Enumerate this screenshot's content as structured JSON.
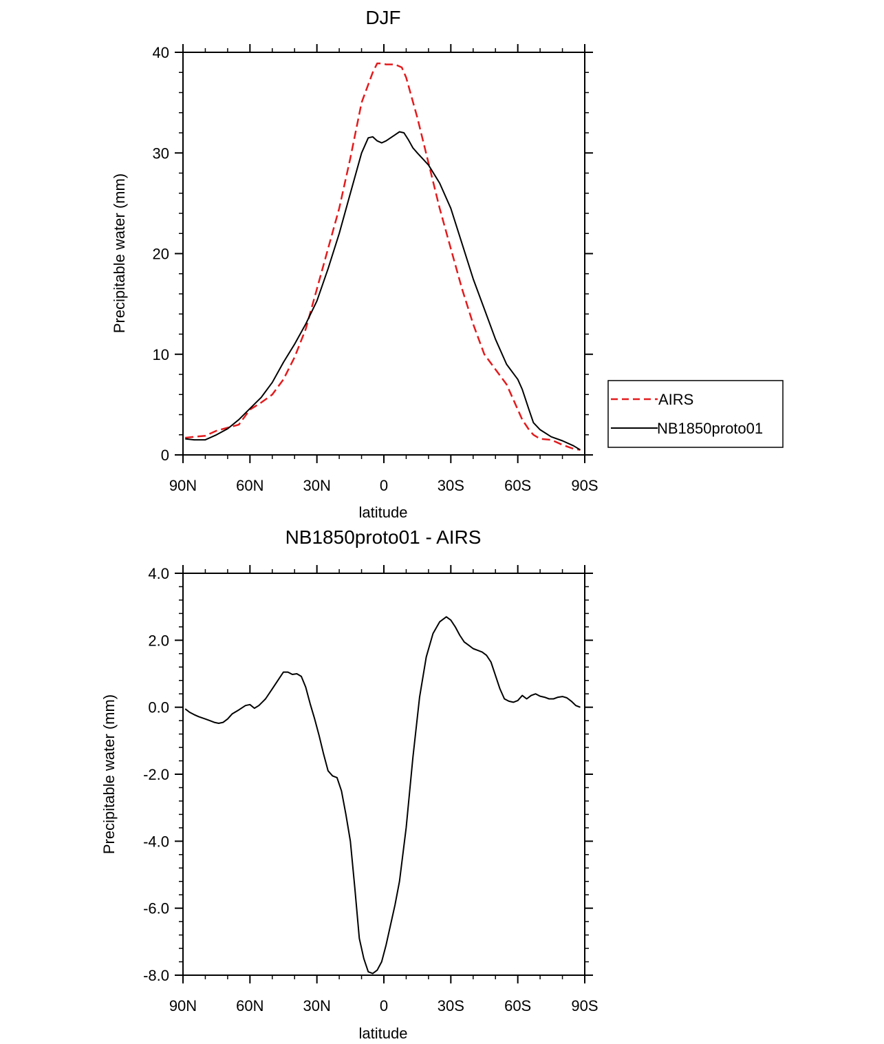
{
  "colors": {
    "airs": "#e31a1c",
    "model": "#000000",
    "axis": "#000000"
  },
  "chart_data": [
    {
      "type": "line",
      "title": "DJF",
      "xlabel": "latitude",
      "ylabel": "Precipitable water (mm)",
      "xlim": [
        90,
        -90
      ],
      "ylim": [
        0,
        40
      ],
      "xticks": [
        90,
        60,
        30,
        0,
        -30,
        -60,
        -90
      ],
      "xtick_labels": [
        "90N",
        "60N",
        "30N",
        "0",
        "30S",
        "60S",
        "90S"
      ],
      "yticks": [
        0,
        10,
        20,
        30,
        40
      ],
      "ytick_labels": [
        "0",
        "10",
        "20",
        "30",
        "40"
      ],
      "legend_position": "right",
      "series": [
        {
          "name": "AIRS",
          "style": "dashed",
          "color": "#e31a1c",
          "x": [
            89,
            85,
            80,
            75,
            70,
            65,
            60,
            55,
            50,
            45,
            40,
            35,
            30,
            25,
            20,
            15,
            10,
            5,
            3,
            1,
            -1,
            -3,
            -5,
            -8,
            -10,
            -15,
            -20,
            -25,
            -30,
            -35,
            -40,
            -45,
            -50,
            -55,
            -60,
            -62,
            -65,
            -67,
            -70,
            -75,
            -80,
            -85,
            -88
          ],
          "y": [
            1.7,
            1.8,
            1.9,
            2.4,
            2.7,
            3.0,
            4.5,
            5.2,
            6.0,
            7.5,
            9.7,
            12.5,
            16.5,
            20.5,
            24.5,
            29.5,
            35.0,
            38.0,
            38.9,
            38.9,
            38.8,
            38.8,
            38.8,
            38.5,
            37.5,
            33.5,
            29.0,
            24.5,
            20.5,
            16.5,
            13.0,
            10.0,
            8.5,
            7.0,
            4.5,
            3.5,
            2.5,
            2.0,
            1.6,
            1.5,
            1.0,
            0.6,
            0.5
          ]
        },
        {
          "name": "NB1850proto01",
          "style": "solid",
          "color": "#000000",
          "x": [
            89,
            85,
            80,
            75,
            70,
            65,
            60,
            55,
            50,
            45,
            40,
            35,
            30,
            25,
            20,
            15,
            10,
            7,
            5,
            3,
            1,
            -1,
            -3,
            -5,
            -7,
            -9,
            -11,
            -13,
            -15,
            -20,
            -25,
            -30,
            -35,
            -40,
            -45,
            -50,
            -55,
            -60,
            -62,
            -65,
            -67,
            -70,
            -75,
            -80,
            -85,
            -88
          ],
          "y": [
            1.6,
            1.5,
            1.5,
            2.0,
            2.6,
            3.5,
            4.6,
            5.7,
            7.2,
            9.2,
            11.0,
            13.0,
            15.3,
            18.5,
            22.0,
            26.0,
            30.0,
            31.5,
            31.6,
            31.2,
            31.0,
            31.2,
            31.5,
            31.8,
            32.1,
            32.0,
            31.3,
            30.5,
            30.0,
            28.8,
            27.0,
            24.5,
            21.0,
            17.5,
            14.5,
            11.5,
            9.0,
            7.5,
            6.5,
            4.5,
            3.2,
            2.5,
            1.8,
            1.4,
            0.9,
            0.5
          ]
        }
      ]
    },
    {
      "type": "line",
      "title": "NB1850proto01 - AIRS",
      "xlabel": "latitude",
      "ylabel": "Precipitable water (mm)",
      "xlim": [
        90,
        -90
      ],
      "ylim": [
        -8.0,
        4.0
      ],
      "xticks": [
        90,
        60,
        30,
        0,
        -30,
        -60,
        -90
      ],
      "xtick_labels": [
        "90N",
        "60N",
        "30N",
        "0",
        "30S",
        "60S",
        "90S"
      ],
      "yticks": [
        -8,
        -6,
        -4,
        -2,
        0,
        2,
        4
      ],
      "ytick_labels": [
        "-8.0",
        "-6.0",
        "-4.0",
        "-2.0",
        "0.0",
        "2.0",
        "4.0"
      ],
      "series": [
        {
          "name": "NB1850proto01 - AIRS",
          "style": "solid",
          "color": "#000000",
          "x": [
            89,
            87,
            85,
            83,
            80,
            78,
            76,
            74,
            72,
            70,
            68,
            65,
            62,
            60,
            58,
            56,
            53,
            50,
            47,
            45,
            43,
            41,
            39,
            37,
            35,
            33,
            31,
            29,
            27,
            25,
            23,
            21,
            19,
            17,
            15,
            13,
            11,
            9,
            7,
            5,
            3,
            1,
            -1,
            -3,
            -5,
            -7,
            -10,
            -13,
            -16,
            -19,
            -22,
            -25,
            -28,
            -30,
            -32,
            -34,
            -36,
            -38,
            -40,
            -42,
            -44,
            -46,
            -48,
            -50,
            -52,
            -54,
            -56,
            -58,
            -60,
            -62,
            -64,
            -66,
            -68,
            -70,
            -72,
            -74,
            -76,
            -78,
            -80,
            -82,
            -84,
            -86,
            -88
          ],
          "y": [
            -0.05,
            -0.15,
            -0.22,
            -0.28,
            -0.35,
            -0.4,
            -0.45,
            -0.48,
            -0.45,
            -0.35,
            -0.2,
            -0.08,
            0.05,
            0.08,
            -0.03,
            0.05,
            0.25,
            0.55,
            0.85,
            1.05,
            1.05,
            0.98,
            1.0,
            0.92,
            0.6,
            0.1,
            -0.35,
            -0.85,
            -1.4,
            -1.9,
            -2.05,
            -2.1,
            -2.5,
            -3.2,
            -4.0,
            -5.4,
            -6.9,
            -7.5,
            -7.9,
            -7.95,
            -7.85,
            -7.6,
            -7.1,
            -6.5,
            -5.9,
            -5.2,
            -3.6,
            -1.5,
            0.3,
            1.5,
            2.2,
            2.55,
            2.7,
            2.6,
            2.4,
            2.15,
            1.95,
            1.85,
            1.75,
            1.7,
            1.65,
            1.55,
            1.35,
            0.95,
            0.55,
            0.25,
            0.18,
            0.15,
            0.2,
            0.35,
            0.25,
            0.35,
            0.4,
            0.33,
            0.3,
            0.25,
            0.25,
            0.3,
            0.32,
            0.28,
            0.18,
            0.05,
            0.0
          ]
        }
      ]
    }
  ]
}
